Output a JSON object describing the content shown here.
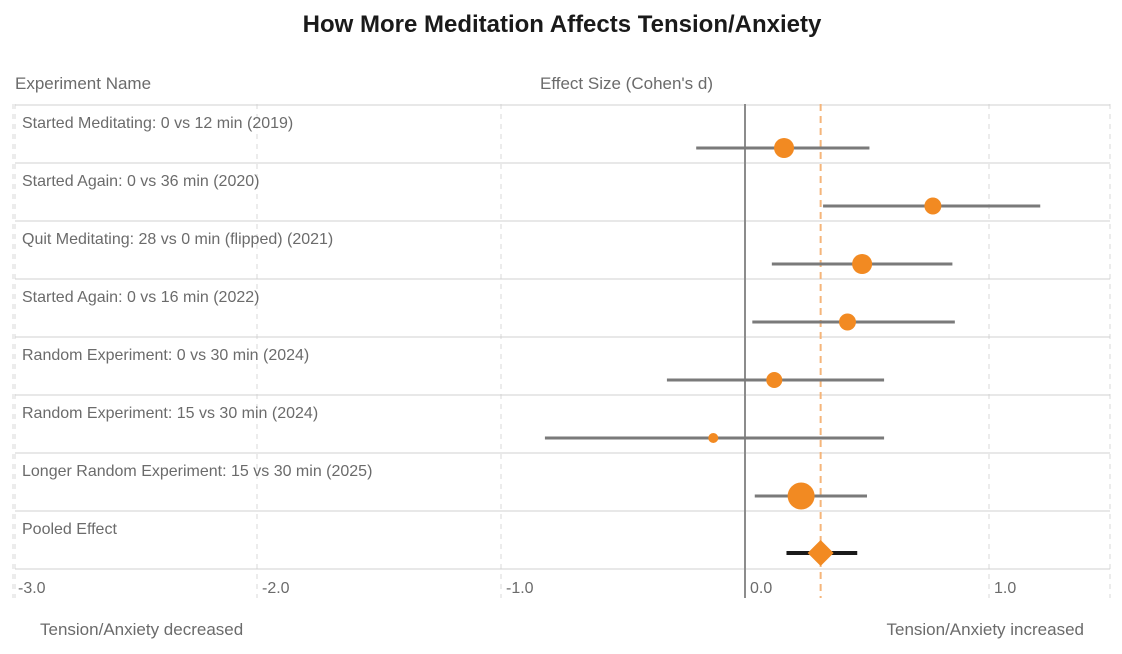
{
  "chart_data": {
    "type": "forest",
    "title": "How More Meditation Affects Tension/Anxiety",
    "column_headers": {
      "name": "Experiment Name",
      "effect": "Effect Size (Cohen's d)"
    },
    "xlim": [
      -3.0,
      1.5
    ],
    "x_ticks": [
      {
        "value": -3.0,
        "label": "-3.0"
      },
      {
        "value": -2.0,
        "label": "-2.0"
      },
      {
        "value": -1.0,
        "label": "-1.0"
      },
      {
        "value": 0.0,
        "label": "0.0"
      },
      {
        "value": 1.0,
        "label": "1.0"
      }
    ],
    "zero_line": 0.0,
    "pooled_reference_line": 0.31,
    "grid": true,
    "studies": [
      {
        "name": "Started Meditating: 0 vs 12 min (2019)",
        "estimate": 0.16,
        "ci_low": -0.2,
        "ci_high": 0.51,
        "weight": 1.0
      },
      {
        "name": "Started Again: 0 vs 36 min (2020)",
        "estimate": 0.77,
        "ci_low": 0.32,
        "ci_high": 1.21,
        "weight": 0.85
      },
      {
        "name": "Quit Meditating: 28 vs 0 min (flipped) (2021)",
        "estimate": 0.48,
        "ci_low": 0.11,
        "ci_high": 0.85,
        "weight": 1.0
      },
      {
        "name": "Started Again: 0 vs 16 min (2022)",
        "estimate": 0.42,
        "ci_low": 0.03,
        "ci_high": 0.86,
        "weight": 0.85
      },
      {
        "name": "Random Experiment: 0 vs 30 min (2024)",
        "estimate": 0.12,
        "ci_low": -0.32,
        "ci_high": 0.57,
        "weight": 0.8
      },
      {
        "name": "Random Experiment: 15 vs 30 min (2024)",
        "estimate": -0.13,
        "ci_low": -0.82,
        "ci_high": 0.57,
        "weight": 0.5
      },
      {
        "name": "Longer Random Experiment: 15 vs 30 min (2025)",
        "estimate": 0.23,
        "ci_low": 0.04,
        "ci_high": 0.5,
        "weight": 1.35
      }
    ],
    "pooled": {
      "name": "Pooled Effect",
      "estimate": 0.31,
      "ci_low": 0.17,
      "ci_high": 0.46
    },
    "footer": {
      "left": "Tension/Anxiety decreased",
      "right": "Tension/Anxiety increased"
    },
    "colors": {
      "point": "#f28a22",
      "ci_line": "#7a7a7a",
      "pooled_ci": "#1a1a1a",
      "reference_line": "#f5b57a",
      "zero_line": "#8c8c8c",
      "grid": "#d8d8d8",
      "row_divider": "#d0d0d0"
    }
  }
}
